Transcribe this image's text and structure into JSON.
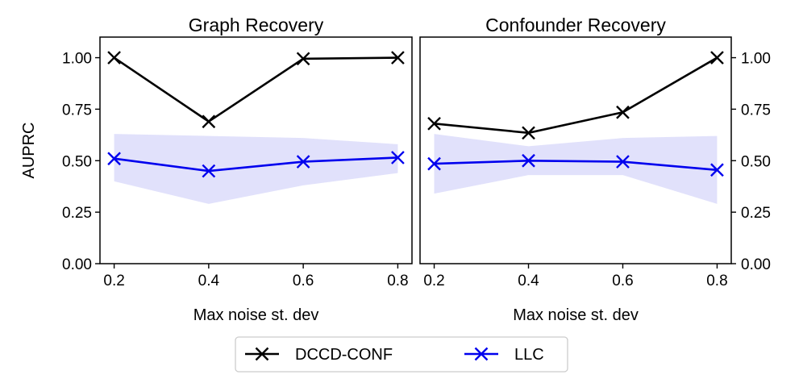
{
  "chart_data": [
    {
      "type": "line",
      "title": "Graph Recovery",
      "xlabel": "Max noise st. dev",
      "ylabel": "AUPRC",
      "x": [
        0.2,
        0.4,
        0.6,
        0.8
      ],
      "xticks": [
        "0.2",
        "0.4",
        "0.6",
        "0.8"
      ],
      "xlim": [
        0.17,
        0.83
      ],
      "yticks": [
        "0.00",
        "0.25",
        "0.50",
        "0.75",
        "1.00"
      ],
      "ylim": [
        0,
        1.1
      ],
      "yaxis_side": "left",
      "series": [
        {
          "name": "DCCD-CONF",
          "values": [
            1.0,
            0.69,
            0.995,
            1.0
          ],
          "band_low": null,
          "band_high": null
        },
        {
          "name": "LLC",
          "values": [
            0.51,
            0.45,
            0.495,
            0.515
          ],
          "band_low": [
            0.4,
            0.29,
            0.38,
            0.44
          ],
          "band_high": [
            0.63,
            0.62,
            0.61,
            0.58
          ]
        }
      ]
    },
    {
      "type": "line",
      "title": "Confounder Recovery",
      "xlabel": "Max noise st. dev",
      "ylabel": "",
      "x": [
        0.2,
        0.4,
        0.6,
        0.8
      ],
      "xticks": [
        "0.2",
        "0.4",
        "0.6",
        "0.8"
      ],
      "xlim": [
        0.17,
        0.83
      ],
      "yticks": [
        "0.00",
        "0.25",
        "0.50",
        "0.75",
        "1.00"
      ],
      "ylim": [
        0,
        1.1
      ],
      "yaxis_side": "right",
      "series": [
        {
          "name": "DCCD-CONF",
          "values": [
            0.68,
            0.635,
            0.735,
            1.0
          ],
          "band_low": null,
          "band_high": null
        },
        {
          "name": "LLC",
          "values": [
            0.485,
            0.5,
            0.495,
            0.455
          ],
          "band_low": [
            0.34,
            0.43,
            0.43,
            0.29
          ],
          "band_high": [
            0.63,
            0.57,
            0.61,
            0.62
          ]
        }
      ]
    }
  ],
  "legend": {
    "entries": [
      {
        "label": "DCCD-CONF",
        "color": "#000000"
      },
      {
        "label": "LLC",
        "color": "#0000ee"
      }
    ],
    "position": "bottom-center"
  },
  "colors": {
    "dccd": "#000000",
    "llc": "#0000ee",
    "llc_band": "#dcdcfa"
  }
}
